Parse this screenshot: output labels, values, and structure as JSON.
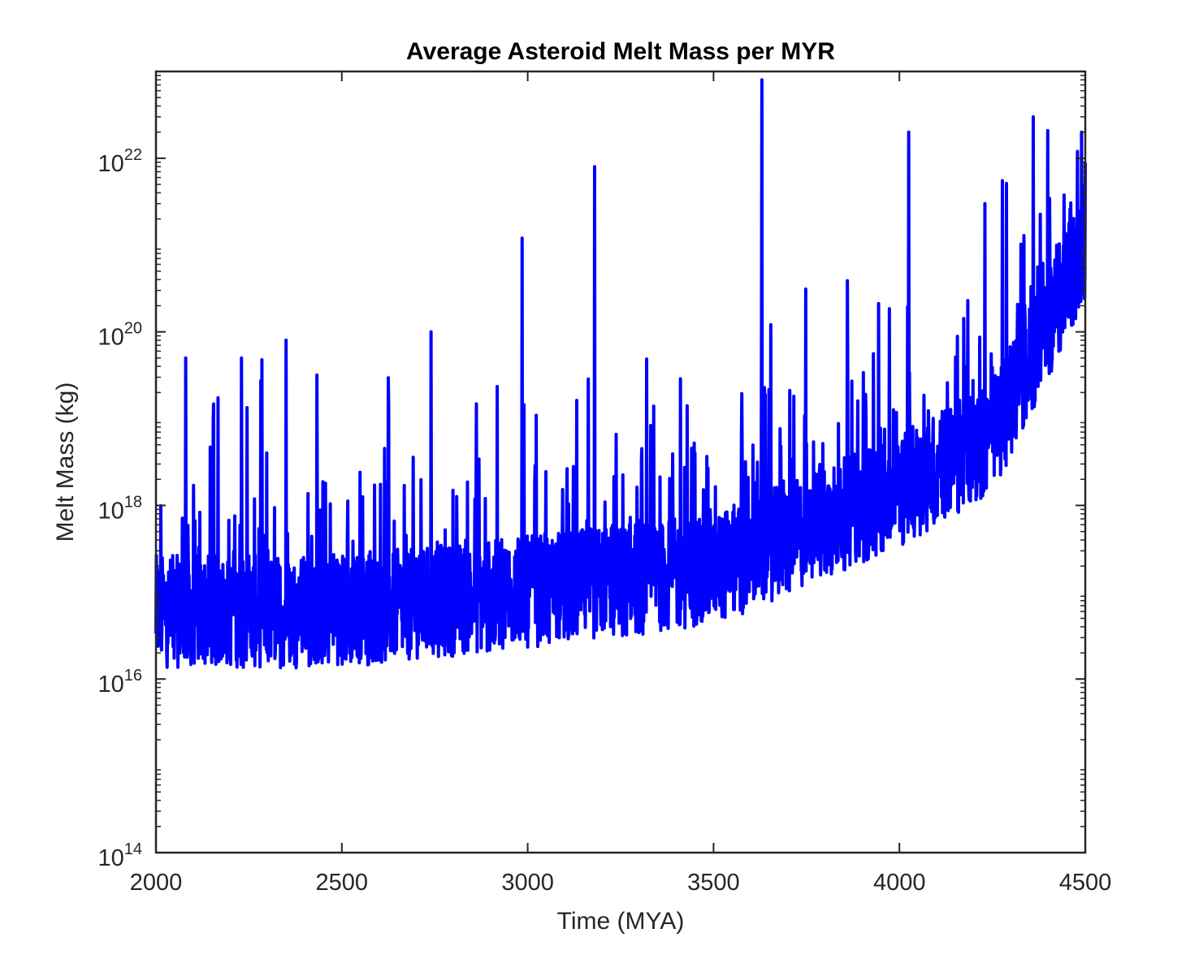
{
  "chart_data": {
    "type": "line",
    "title": "Average Asteroid Melt Mass per MYR",
    "xlabel": "Time (MYA)",
    "ylabel": "Melt Mass (kg)",
    "xlim": [
      2000,
      4500
    ],
    "ylim": [
      100000000000000.0,
      1e+23
    ],
    "yscale": "log",
    "grid": false,
    "legend": "none",
    "x_ticks": [
      2000,
      2500,
      3000,
      3500,
      4000,
      4500
    ],
    "x_tick_labels": [
      "2000",
      "2500",
      "3000",
      "3500",
      "4000",
      "4500"
    ],
    "y_ticks": [
      100000000000000.0,
      1e+16,
      1e+18,
      1e+20,
      1e+22
    ],
    "y_tick_labels": [
      {
        "base": "10",
        "exp": "14"
      },
      {
        "base": "10",
        "exp": "16"
      },
      {
        "base": "10",
        "exp": "18"
      },
      {
        "base": "10",
        "exp": "20"
      },
      {
        "base": "10",
        "exp": "22"
      }
    ],
    "series_color": "#0000ff",
    "series": [
      {
        "sampling": "1 point per MYR, 2000–4500 MYA",
        "notable_peaks": [
          {
            "x": 2080,
            "y": 5e+19
          },
          {
            "x": 2230,
            "y": 5e+19
          },
          {
            "x": 2350,
            "y": 8e+19
          },
          {
            "x": 2740,
            "y": 1e+20
          },
          {
            "x": 2985,
            "y": 1.2e+21
          },
          {
            "x": 3180,
            "y": 8e+21
          },
          {
            "x": 3630,
            "y": 8e+22
          },
          {
            "x": 4025,
            "y": 2e+22
          },
          {
            "x": 4230,
            "y": 3e+21
          },
          {
            "x": 4360,
            "y": 3e+22
          },
          {
            "x": 4490,
            "y": 2e+22
          }
        ],
        "baseline_trend": [
          {
            "x": 2000,
            "y": 6e+16
          },
          {
            "x": 2500,
            "y": 6e+16
          },
          {
            "x": 3000,
            "y": 1e+17
          },
          {
            "x": 3500,
            "y": 1.8e+17
          },
          {
            "x": 4000,
            "y": 1.5e+18
          },
          {
            "x": 4250,
            "y": 6e+18
          },
          {
            "x": 4500,
            "y": 1e+21
          }
        ]
      }
    ]
  }
}
